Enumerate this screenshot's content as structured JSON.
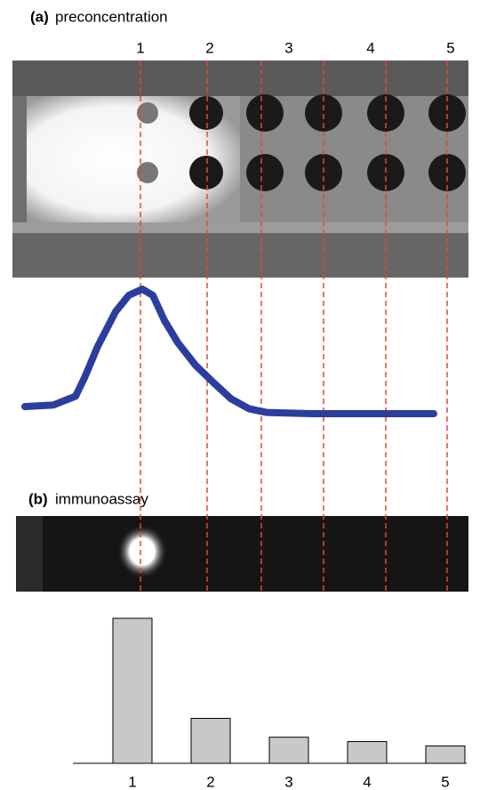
{
  "panel_a": {
    "label": "(a)",
    "title": "preconcentration",
    "channel_labels": [
      "1",
      "2",
      "3",
      "4",
      "5"
    ]
  },
  "panel_b": {
    "label": "(b)",
    "title": "immunoassay"
  },
  "chart_data": [
    {
      "type": "line",
      "color": "#2b3d9e",
      "x": [
        0,
        7,
        12.4,
        14.6,
        17.8,
        22.2,
        25.4,
        28.7,
        31.3,
        34.1,
        37.4,
        41.7,
        46.1,
        50.4,
        54.8,
        59.1,
        70,
        100
      ],
      "values": [
        5.7,
        7,
        14,
        29,
        54,
        82,
        95,
        100,
        95,
        75,
        57,
        39,
        25,
        12,
        4,
        1,
        0,
        0
      ],
      "xlim": [
        0,
        100
      ],
      "ylim": [
        0,
        100
      ]
    },
    {
      "type": "bar",
      "color": "#c8c8c8",
      "categories": [
        "1",
        "2",
        "3",
        "4",
        "5"
      ],
      "values": [
        100,
        31,
        18,
        15,
        12
      ],
      "ylim": [
        0,
        100
      ]
    }
  ]
}
